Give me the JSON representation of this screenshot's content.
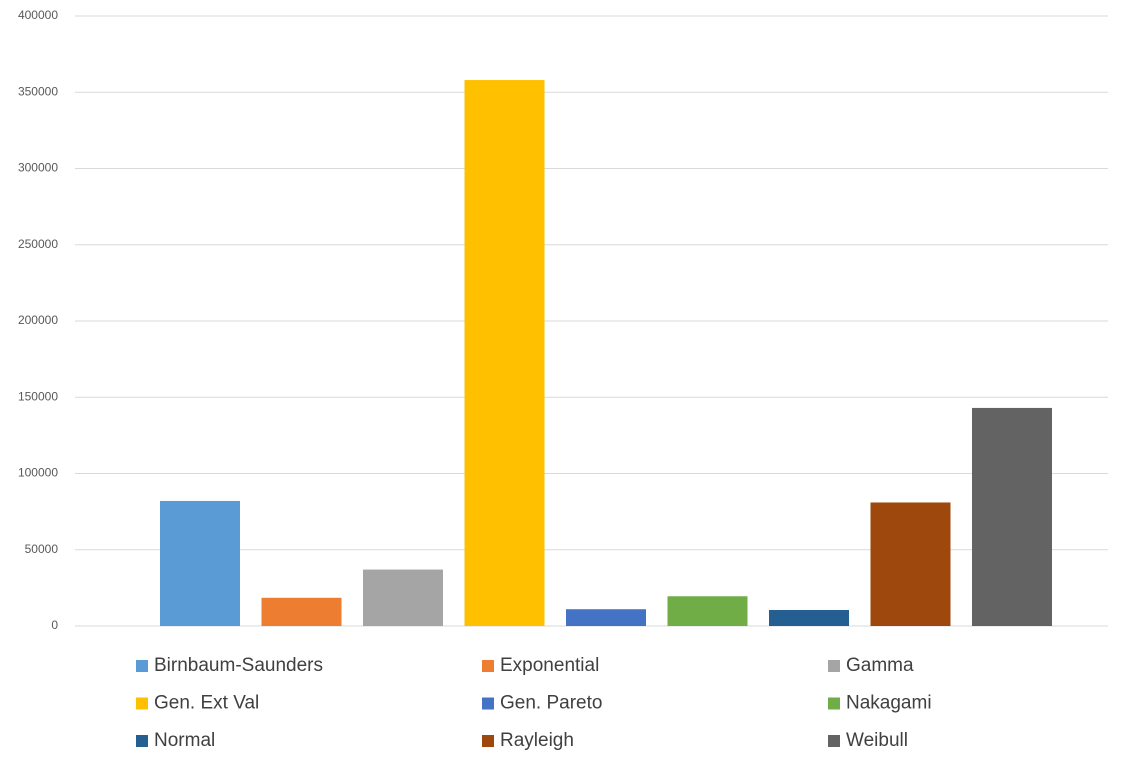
{
  "chart_data": {
    "type": "bar",
    "series": [
      {
        "name": "Birnbaum-Saunders",
        "color": "#5b9bd5",
        "values": [
          82000
        ]
      },
      {
        "name": "Exponential",
        "color": "#ed7d31",
        "values": [
          18500
        ]
      },
      {
        "name": "Gamma",
        "color": "#a5a5a5",
        "values": [
          37000
        ]
      },
      {
        "name": "Gen. Ext Val",
        "color": "#ffc000",
        "values": [
          358000
        ]
      },
      {
        "name": "Gen. Pareto",
        "color": "#4472c4",
        "values": [
          11000
        ]
      },
      {
        "name": "Nakagami",
        "color": "#70ad47",
        "values": [
          19500
        ]
      },
      {
        "name": "Normal",
        "color": "#255e91",
        "values": [
          10500
        ]
      },
      {
        "name": "Rayleigh",
        "color": "#9e480e",
        "values": [
          81000
        ]
      },
      {
        "name": "Weibull",
        "color": "#636363",
        "values": [
          143000
        ]
      }
    ],
    "ylim": [
      0,
      400000
    ],
    "yticks": [
      0,
      50000,
      100000,
      150000,
      200000,
      250000,
      300000,
      350000,
      400000
    ],
    "grid": true,
    "legend": "bottom"
  }
}
